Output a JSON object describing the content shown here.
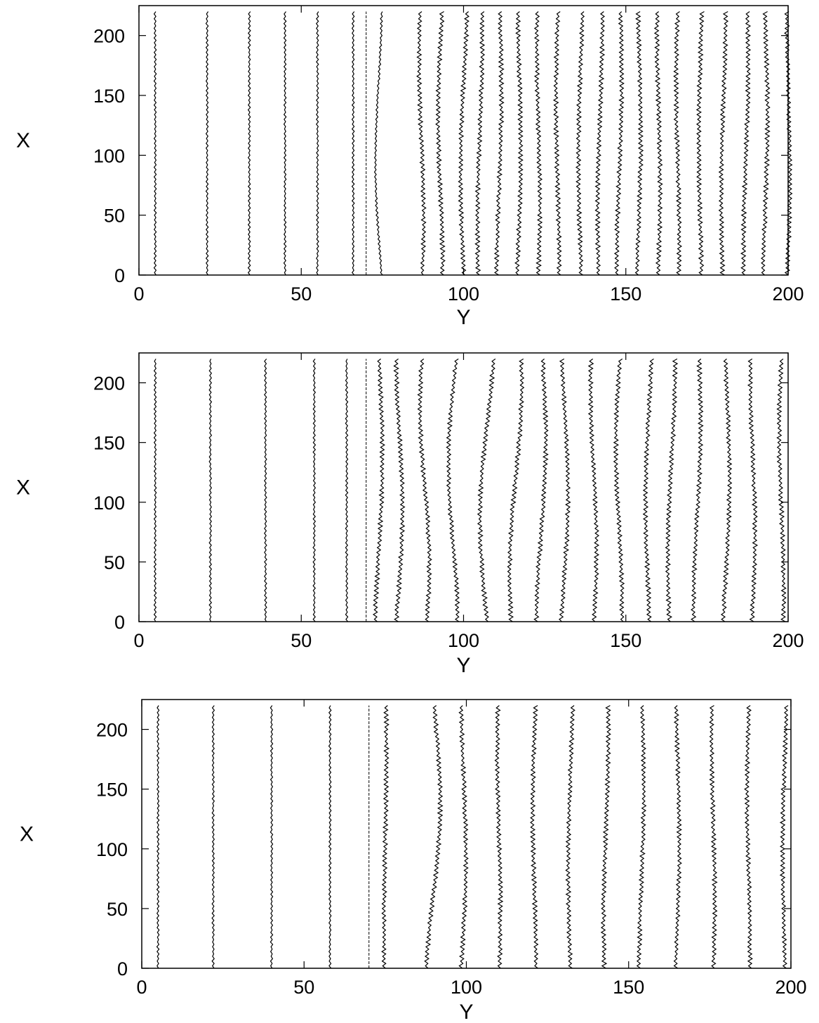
{
  "chart_data": [
    {
      "type": "line",
      "xlabel": "Y",
      "ylabel": "X",
      "xlim": [
        0,
        200
      ],
      "ylim": [
        0,
        225
      ],
      "xticks": [
        "0",
        "50",
        "100",
        "150",
        "200"
      ],
      "yticks": [
        "0",
        "50",
        "100",
        "150",
        "200"
      ],
      "grid": false,
      "series_style": "vertical jagged lines",
      "x_extent": [
        0,
        220
      ],
      "dashed_line_y": 70,
      "lines_y_at_x0": [
        5,
        21,
        34,
        45,
        55,
        66,
        74,
        87,
        93,
        100,
        105,
        111,
        117,
        123,
        129,
        136,
        142,
        148,
        154,
        160,
        166,
        173,
        180,
        187,
        193,
        200
      ],
      "lines_bulge": [
        0,
        0,
        0,
        0,
        0,
        0,
        -2,
        1.5,
        1.5,
        1.5,
        1,
        1,
        1,
        1,
        1,
        1,
        1,
        1,
        1,
        1,
        1,
        1,
        1,
        1,
        1,
        1
      ]
    },
    {
      "type": "line",
      "xlabel": "Y",
      "ylabel": "X",
      "xlim": [
        0,
        200
      ],
      "ylim": [
        0,
        225
      ],
      "xticks": [
        "0",
        "50",
        "100",
        "150",
        "200"
      ],
      "yticks": [
        "0",
        "50",
        "100",
        "150",
        "200"
      ],
      "grid": false,
      "series_style": "vertical jagged lines",
      "x_extent": [
        0,
        220
      ],
      "dashed_line_y": 70,
      "lines_y_at_x0": [
        5,
        22,
        39,
        54,
        64,
        74,
        80,
        88,
        97,
        107,
        116,
        124,
        131,
        140,
        148,
        157,
        164,
        172,
        181,
        189,
        198
      ],
      "lines_bulge": [
        0,
        0,
        0,
        0,
        0,
        1.5,
        2,
        3,
        3,
        3,
        2.5,
        2,
        2,
        2,
        2,
        1.5,
        1.5,
        1.5,
        1.5,
        1.5,
        1.5
      ]
    },
    {
      "type": "line",
      "xlabel": "Y",
      "ylabel": "X",
      "xlim": [
        0,
        200
      ],
      "ylim": [
        0,
        225
      ],
      "xticks": [
        "0",
        "50",
        "100",
        "150",
        "200"
      ],
      "yticks": [
        "0",
        "50",
        "100",
        "150",
        "200"
      ],
      "grid": false,
      "series_style": "vertical jagged lines",
      "x_extent": [
        0,
        220
      ],
      "dashed_line_y": 70,
      "lines_y_at_x0": [
        5,
        22,
        40,
        58,
        75,
        90,
        99,
        110,
        121,
        132,
        143,
        154,
        165,
        176,
        187,
        198
      ],
      "lines_bulge": [
        0,
        0,
        0,
        0,
        0.5,
        3,
        1.5,
        1,
        1,
        1,
        1,
        1,
        1,
        1,
        1,
        1
      ]
    }
  ]
}
